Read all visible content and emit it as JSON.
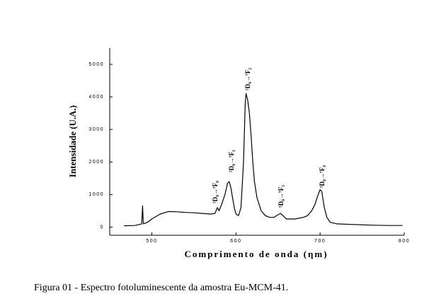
{
  "chart_data": {
    "type": "line",
    "xlabel": "Comprimento de onda (ηm)",
    "ylabel": "Intensidade (U.A.)",
    "caption": "Figura 01 - Espectro fotoluminescente da amostra Eu-MCM-41.",
    "annotations": [
      "⁵D₀→⁷F₀",
      "⁵D₀→⁷F₁",
      "⁵D₀→⁷F₂",
      "⁵D₀→⁷F₃",
      "⁵D₀→⁷F₄"
    ],
    "x": [
      467,
      480,
      485,
      488,
      489,
      490,
      495,
      500,
      510,
      520,
      530,
      540,
      550,
      560,
      570,
      575,
      578,
      580,
      583,
      587,
      590,
      592,
      594,
      596,
      598,
      600,
      603,
      606,
      609,
      611,
      612,
      614,
      616,
      618,
      620,
      622,
      625,
      630,
      635,
      640,
      645,
      650,
      653,
      656,
      660,
      670,
      680,
      685,
      690,
      694,
      697,
      700,
      702,
      705,
      708,
      712,
      720,
      740,
      760,
      780,
      798
    ],
    "values": [
      40,
      50,
      80,
      100,
      650,
      100,
      150,
      250,
      400,
      480,
      470,
      450,
      440,
      420,
      400,
      420,
      600,
      500,
      700,
      1000,
      1350,
      1400,
      1200,
      900,
      600,
      400,
      350,
      600,
      2000,
      3800,
      4100,
      3900,
      3500,
      2800,
      2000,
      1400,
      900,
      500,
      350,
      300,
      300,
      380,
      420,
      350,
      250,
      250,
      300,
      350,
      500,
      700,
      950,
      1150,
      1100,
      600,
      300,
      150,
      100,
      80,
      60,
      50,
      50
    ],
    "color": "#000000",
    "xlim": [
      450,
      800
    ],
    "xticks": [
      500,
      600,
      700,
      800
    ],
    "ylim": [
      -250,
      5500
    ],
    "yticks": [
      0,
      1000,
      2000,
      3000,
      4000,
      5000
    ]
  }
}
